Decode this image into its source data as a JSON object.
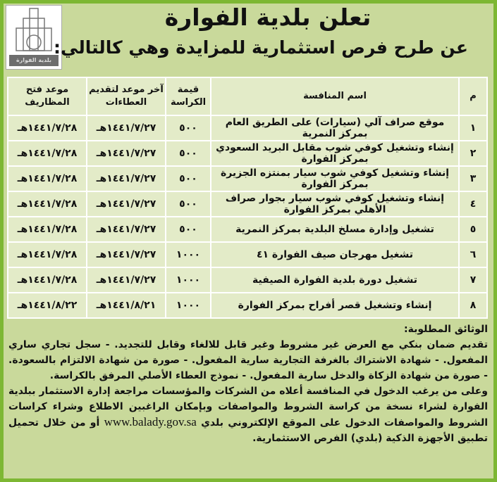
{
  "header": {
    "logo_text": "بلدية الفوارة",
    "title": "تعلن بلدية الفوارة",
    "subtitle": "عن طرح فرص استثمارية للمزايدة وهي كالتالي:"
  },
  "table": {
    "columns": [
      "م",
      "اسم المنافسة",
      "قيمة الكراسة",
      "آخر موعد لتقديم العطاءات",
      "موعد فتح المظاريف"
    ],
    "rows": [
      [
        "١",
        "موقع صراف آلي (سيارات) على الطريق العام بمركز النمرية",
        "٥٠٠",
        "١٤٤١/٧/٢٧هـ",
        "١٤٤١/٧/٢٨هـ"
      ],
      [
        "٢",
        "إنشاء وتشغيل كوفي شوب مقابل البريد السعودي بمركز الفوارة",
        "٥٠٠",
        "١٤٤١/٧/٢٧هـ",
        "١٤٤١/٧/٢٨هـ"
      ],
      [
        "٣",
        "إنشاء وتشغيل كوفي شوب سيار بمنتزه الجزيرة بمركز الفوارة",
        "٥٠٠",
        "١٤٤١/٧/٢٧هـ",
        "١٤٤١/٧/٢٨هـ"
      ],
      [
        "٤",
        "إنشاء وتشغيل كوفي شوب سيار بجوار صراف الأهلي بمركز الفوارة",
        "٥٠٠",
        "١٤٤١/٧/٢٧هـ",
        "١٤٤١/٧/٢٨هـ"
      ],
      [
        "٥",
        "تشغيل وإدارة مسلخ البلدية بمركز النمرية",
        "٥٠٠",
        "١٤٤١/٧/٢٧هـ",
        "١٤٤١/٧/٢٨هـ"
      ],
      [
        "٦",
        "تشغيل مهرجان صيف الفوارة ٤١",
        "١٠٠٠",
        "١٤٤١/٧/٢٧هـ",
        "١٤٤١/٧/٢٨هـ"
      ],
      [
        "٧",
        "تشغيل دورة بلدية الفوارة الصيفية",
        "١٠٠٠",
        "١٤٤١/٧/٢٧هـ",
        "١٤٤١/٧/٢٨هـ"
      ],
      [
        "٨",
        "إنشاء وتشغيل قصر أفراح بمركز الفوارة",
        "١٠٠٠",
        "١٤٤١/٨/٢١هـ",
        "١٤٤١/٨/٢٢هـ"
      ]
    ]
  },
  "documents": {
    "heading": "الوثائق المطلوبة:",
    "body": "تقديم ضمان بنكي مع العرض غير مشروط وغير قابل للالغاء وقابل للتجديد. - سجل تجاري ساري المفعول. - شهادة الاشتراك بالغرفة التجارية سارية المفعول. - صورة من شهادة الالتزام بالسعودة. - صورة من شهادة الزكاة والدخل سارية المفعول. - نموذج العطاء الأصلي المرفق بالكراسة.",
    "footer_before_link": "وعلى من يرغب الدخول في المنافسة أعلاه من الشركات والمؤسسات مراجعة إدارة الاستثمار ببلدية الفوارة لشراء نسخة من كراسة الشروط والمواصفات وبإمكان الراغبين الاطلاع وشراء كراسات الشروط والمواصفات الدخول على الموقع الإلكتروني بلدي",
    "link": "www.balady.gov.sa",
    "footer_after_link": "أو من خلال تحميل تطبيق الأجهزة الذكية (بلدي) الفرص الاستثمارية."
  },
  "colors": {
    "border": "#7db733",
    "background": "#c9d99b",
    "cell": "#e3ebc8"
  }
}
